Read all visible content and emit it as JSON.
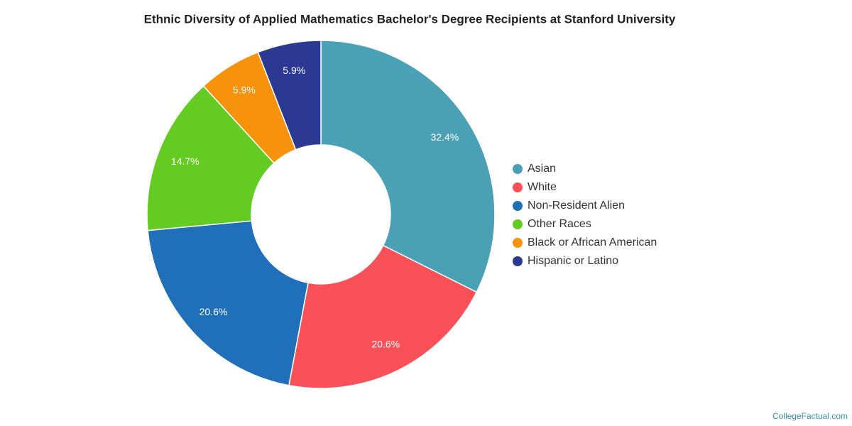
{
  "chart_data": {
    "type": "donut",
    "title": "Ethnic Diversity of Applied Mathematics Bachelor's Degree Recipients at Stanford University",
    "categories": [
      "Asian",
      "White",
      "Non-Resident Alien",
      "Other Races",
      "Black or African American",
      "Hispanic or Latino"
    ],
    "values": [
      32.4,
      20.6,
      20.6,
      14.7,
      5.9,
      5.9
    ],
    "value_labels": [
      "32.4%",
      "20.6%",
      "20.6%",
      "14.7%",
      "5.9%",
      "5.9%"
    ],
    "colors": [
      "#4aa0b5",
      "#f95157",
      "#1f70b8",
      "#63cb22",
      "#f7920d",
      "#2c3993"
    ],
    "legend": "right",
    "credit": "CollegeFactual.com"
  }
}
